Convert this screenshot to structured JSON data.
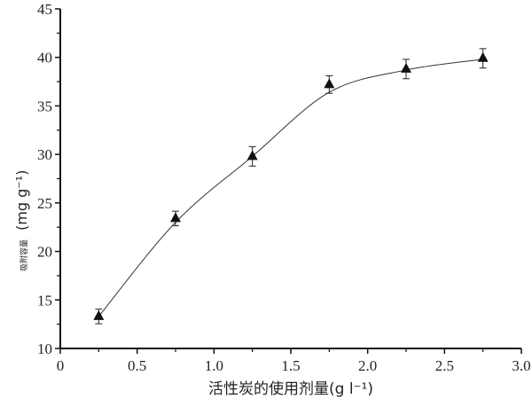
{
  "chart_data": {
    "type": "scatter",
    "title": "",
    "xlabel": "活性炭的使用剂量(g l⁻¹)",
    "ylabel_cn": "吸附容量",
    "ylabel_unit": "(mg g⁻¹)",
    "xlim": [
      0,
      3.0
    ],
    "ylim": [
      10,
      45
    ],
    "xticks": [
      "0",
      "0.5",
      "1.0",
      "1.5",
      "2.0",
      "2.5",
      "3.0"
    ],
    "yticks": [
      "10",
      "15",
      "20",
      "25",
      "30",
      "35",
      "40",
      "45"
    ],
    "grid": false,
    "marker": "filled-triangle",
    "color": "#111111",
    "points": [
      {
        "x": 0.25,
        "y": 13.3,
        "err": 0.75
      },
      {
        "x": 0.75,
        "y": 23.4,
        "err": 0.75
      },
      {
        "x": 1.25,
        "y": 29.8,
        "err": 1.0
      },
      {
        "x": 1.75,
        "y": 37.2,
        "err": 0.9
      },
      {
        "x": 2.25,
        "y": 38.8,
        "err": 1.0
      },
      {
        "x": 2.75,
        "y": 39.9,
        "err": 1.0
      }
    ],
    "fit_curve": {
      "x": [
        0.25,
        0.75,
        1.25,
        1.75,
        2.25,
        2.75
      ],
      "y": [
        13.3,
        23.0,
        29.8,
        36.4,
        38.7,
        39.8
      ]
    }
  }
}
